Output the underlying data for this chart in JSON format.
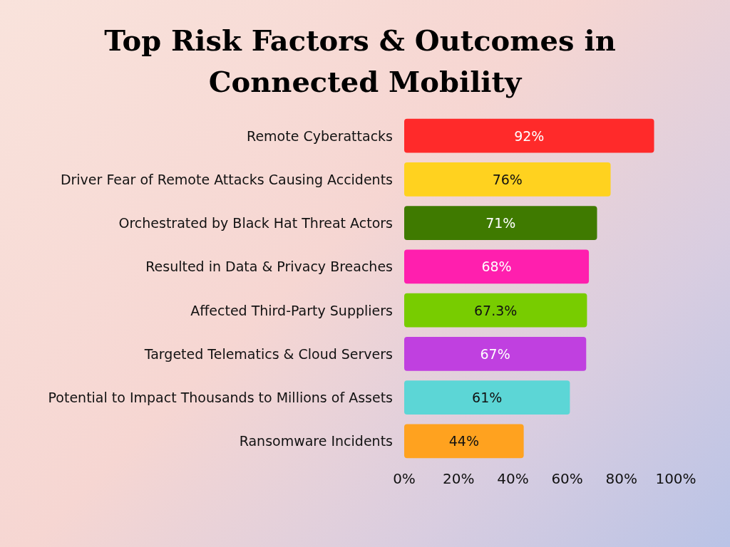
{
  "chart_data": {
    "type": "bar",
    "orientation": "horizontal",
    "title": "Top Risk Factors & Outcomes in Connected Mobility",
    "categories": [
      "Remote Cyberattacks",
      "Driver Fear of Remote Attacks Causing Accidents",
      "Orchestrated by Black Hat Threat Actors",
      "Resulted in Data & Privacy Breaches",
      "Affected Third-Party Suppliers",
      "Targeted Telematics & Cloud Servers",
      "Potential to Impact Thousands to Millions of Assets",
      "Ransomware Incidents"
    ],
    "values": [
      92,
      76,
      71,
      68,
      67.3,
      67,
      61,
      44
    ],
    "value_labels": [
      "92%",
      "76%",
      "71%",
      "68%",
      "67.3%",
      "67%",
      "61%",
      "44%"
    ],
    "colors": [
      "#ff2a2a",
      "#ffd21f",
      "#3f7a00",
      "#ff1fae",
      "#78cc00",
      "#c040e0",
      "#5cd6d6",
      "#ffa21f"
    ],
    "xlim": [
      0,
      100
    ],
    "xticks": [
      {
        "value": 0,
        "label": "0%"
      },
      {
        "value": 20,
        "label": "20%"
      },
      {
        "value": 40,
        "label": "40%"
      },
      {
        "value": 60,
        "label": "60%"
      },
      {
        "value": 80,
        "label": "80%"
      },
      {
        "value": 100,
        "label": "100%"
      }
    ]
  }
}
